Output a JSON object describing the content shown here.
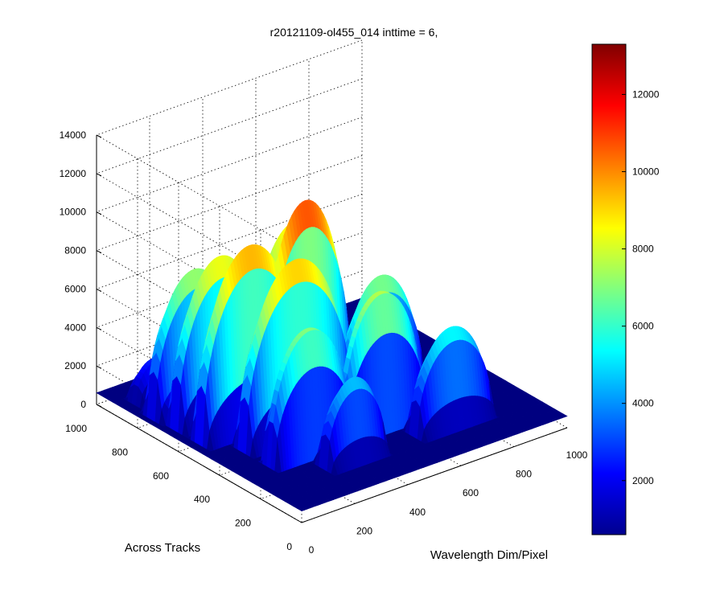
{
  "chart_data": {
    "type": "surface",
    "title": "r20121109-ol455_014 inttime = 6,",
    "xlabel": "Wavelength Dim/Pixel",
    "ylabel": "Across Tracks",
    "zlabel": "",
    "xlim": [
      0,
      1000
    ],
    "ylim": [
      0,
      1000
    ],
    "zlim": [
      0,
      14000
    ],
    "x_ticks": [
      0,
      200,
      400,
      600,
      800,
      1000
    ],
    "y_ticks": [
      0,
      200,
      400,
      600,
      800,
      1000
    ],
    "z_ticks": [
      0,
      2000,
      4000,
      6000,
      8000,
      10000,
      12000,
      14000
    ],
    "grid": true,
    "colormap": "jet",
    "colorbar": {
      "range": [
        600,
        13300
      ],
      "ticks": [
        2000,
        4000,
        6000,
        8000,
        10000,
        12000
      ],
      "placement": "right"
    },
    "baseline_value": 600,
    "peak_value": 11300,
    "across_track_bands": [
      {
        "across_track": 180,
        "peaks": [
          {
            "wavelength": 330,
            "value": 4800,
            "width": 110
          },
          {
            "wavelength": 700,
            "value": 5600,
            "width": 140
          }
        ]
      },
      {
        "across_track": 290,
        "peaks": [
          {
            "wavelength": 250,
            "value": 7200,
            "width": 150
          },
          {
            "wavelength": 520,
            "value": 7800,
            "width": 150
          }
        ]
      },
      {
        "across_track": 420,
        "peaks": [
          {
            "wavelength": 300,
            "value": 9600,
            "width": 200
          },
          {
            "wavelength": 620,
            "value": 7200,
            "width": 150
          }
        ]
      },
      {
        "across_track": 540,
        "peaks": [
          {
            "wavelength": 220,
            "value": 10000,
            "width": 190
          },
          {
            "wavelength": 430,
            "value": 11300,
            "width": 160
          }
        ]
      },
      {
        "across_track": 660,
        "peaks": [
          {
            "wavelength": 200,
            "value": 8800,
            "width": 170
          },
          {
            "wavelength": 480,
            "value": 9200,
            "width": 170
          }
        ]
      },
      {
        "across_track": 760,
        "peaks": [
          {
            "wavelength": 180,
            "value": 7600,
            "width": 160
          },
          {
            "wavelength": 420,
            "value": 6400,
            "width": 140
          }
        ]
      },
      {
        "across_track": 870,
        "peaks": [
          {
            "wavelength": 120,
            "value": 2600,
            "width": 80
          },
          {
            "wavelength": 300,
            "value": 4400,
            "width": 140
          }
        ]
      }
    ]
  }
}
